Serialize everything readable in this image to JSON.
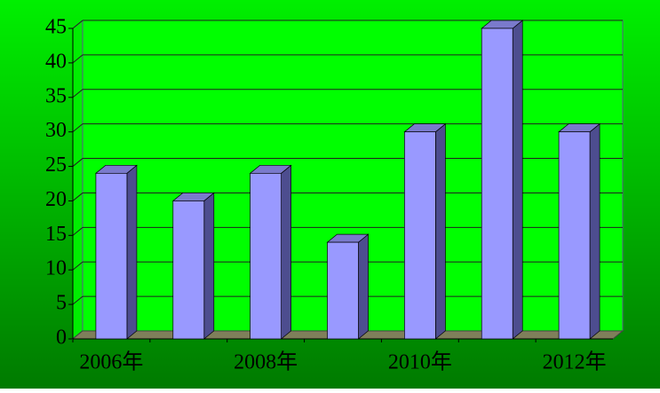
{
  "chart_data": {
    "type": "bar3d",
    "categories": [
      "2006年",
      null,
      "2008年",
      null,
      "2010年",
      null,
      "2012年"
    ],
    "values": [
      24,
      20,
      24,
      14,
      30,
      45,
      30
    ],
    "color": "#9999ff",
    "ylim": [
      0,
      45
    ],
    "yticks": [
      0,
      5,
      10,
      15,
      20,
      25,
      30,
      35,
      40,
      45
    ],
    "grid": true
  }
}
